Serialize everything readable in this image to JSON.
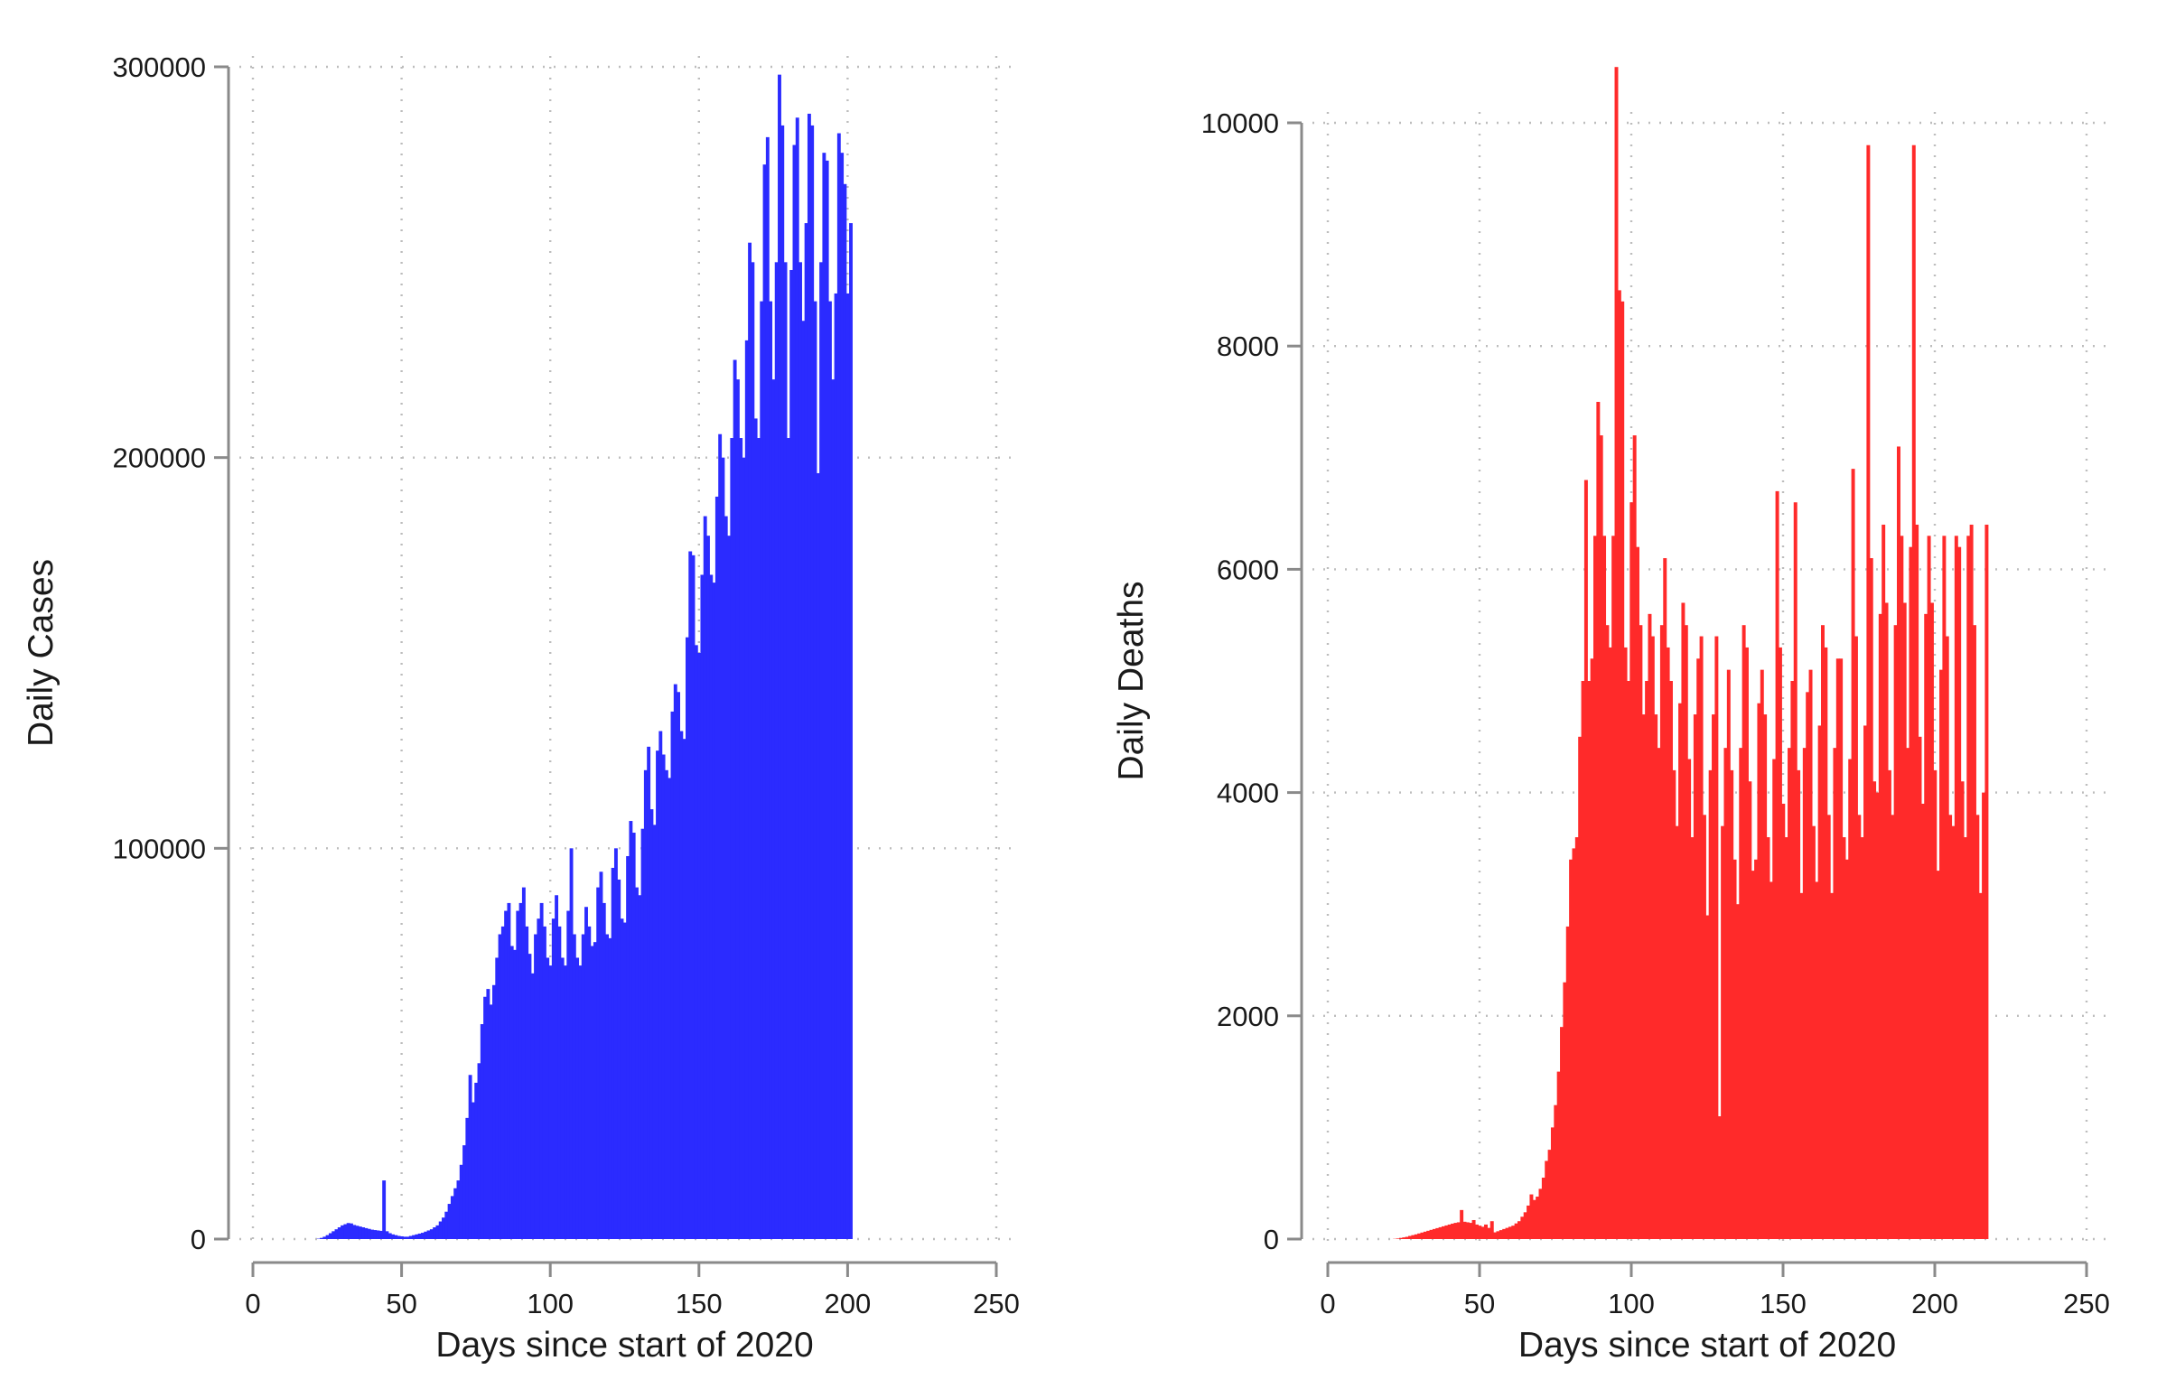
{
  "chart_data": [
    {
      "type": "bar",
      "panel": "left",
      "title": "",
      "xlabel": "Days since start of 2020",
      "ylabel": "Daily Cases",
      "xlim": [
        0,
        250
      ],
      "ylim": [
        0,
        300000
      ],
      "xticks": [
        "0",
        "50",
        "100",
        "150",
        "200",
        "250"
      ],
      "yticks": [
        "0",
        "100000",
        "200000",
        "300000"
      ],
      "grid": true,
      "color": "#2b2bff",
      "series": [
        {
          "name": "Daily Cases",
          "x_start": 22,
          "values": [
            100,
            300,
            600,
            1000,
            1500,
            2000,
            2500,
            3000,
            3500,
            3800,
            4100,
            4000,
            3600,
            3400,
            3200,
            3000,
            2800,
            2600,
            2400,
            2300,
            2200,
            2100,
            15000,
            2000,
            1500,
            1200,
            1000,
            800,
            700,
            600,
            600,
            800,
            1000,
            1200,
            1400,
            1600,
            1900,
            2200,
            2500,
            3000,
            3500,
            4500,
            5500,
            7000,
            9000,
            11000,
            13000,
            15000,
            19000,
            24000,
            31000,
            42000,
            35000,
            40000,
            45000,
            55000,
            62000,
            64000,
            60000,
            65000,
            72000,
            78000,
            80000,
            84000,
            86000,
            75000,
            74000,
            84000,
            86000,
            90000,
            80000,
            73000,
            68000,
            78000,
            82000,
            86000,
            80000,
            72000,
            70000,
            82000,
            88000,
            80000,
            72000,
            70000,
            84000,
            100000,
            78000,
            72000,
            70000,
            78000,
            85000,
            80000,
            75000,
            76000,
            90000,
            94000,
            86000,
            78000,
            77000,
            95000,
            100000,
            92000,
            82000,
            81000,
            98000,
            107000,
            104000,
            90000,
            88000,
            105000,
            120000,
            126000,
            110000,
            106000,
            125000,
            130000,
            124000,
            120000,
            118000,
            135000,
            142000,
            140000,
            130000,
            128000,
            154000,
            176000,
            175000,
            152000,
            150000,
            170000,
            185000,
            180000,
            170000,
            168000,
            190000,
            206000,
            200000,
            185000,
            180000,
            205000,
            225000,
            220000,
            205000,
            200000,
            230000,
            255000,
            250000,
            210000,
            205000,
            240000,
            275000,
            282000,
            240000,
            220000,
            250000,
            298000,
            285000,
            250000,
            205000,
            248000,
            280000,
            287000,
            250000,
            235000,
            260000,
            288000,
            285000,
            240000,
            196000,
            250000,
            278000,
            276000,
            240000,
            220000,
            242000,
            283000,
            278000,
            270000,
            242000,
            260000
          ]
        }
      ]
    },
    {
      "type": "bar",
      "panel": "right",
      "title": "",
      "xlabel": "Days since start of 2020",
      "ylabel": "Daily Deaths",
      "xlim": [
        0,
        250
      ],
      "ylim": [
        0,
        10000
      ],
      "xticks": [
        "0",
        "50",
        "100",
        "150",
        "200",
        "250"
      ],
      "yticks": [
        "0",
        "2000",
        "4000",
        "6000",
        "8000",
        "10000"
      ],
      "grid": true,
      "color": "#ff2a2a",
      "series": [
        {
          "name": "Daily Deaths",
          "x_start": 22,
          "values": [
            2,
            5,
            10,
            15,
            20,
            28,
            35,
            42,
            50,
            58,
            66,
            74,
            82,
            90,
            98,
            106,
            114,
            122,
            130,
            138,
            145,
            150,
            260,
            155,
            150,
            145,
            170,
            130,
            120,
            110,
            130,
            100,
            160,
            60,
            70,
            80,
            90,
            100,
            110,
            120,
            140,
            160,
            200,
            240,
            300,
            400,
            350,
            380,
            450,
            550,
            700,
            800,
            1000,
            1200,
            1500,
            1900,
            2300,
            2800,
            3400,
            3500,
            3600,
            4500,
            5000,
            6800,
            5000,
            5200,
            6300,
            7500,
            7200,
            6300,
            5500,
            5300,
            6300,
            10500,
            8500,
            8400,
            5300,
            5000,
            6600,
            7200,
            6200,
            5500,
            4700,
            5000,
            5600,
            5400,
            4700,
            4400,
            5500,
            6100,
            5300,
            5000,
            4200,
            3700,
            4800,
            5700,
            5500,
            4300,
            3600,
            4700,
            5200,
            5400,
            3800,
            2900,
            4200,
            4700,
            5400,
            1100,
            3700,
            4400,
            5100,
            4200,
            3400,
            3000,
            4400,
            5500,
            5300,
            4100,
            3300,
            3400,
            4800,
            5100,
            4700,
            3600,
            3200,
            4300,
            6700,
            5300,
            3900,
            3600,
            4400,
            5000,
            6600,
            4200,
            3100,
            4400,
            4900,
            5100,
            3700,
            3200,
            4600,
            5500,
            5300,
            3800,
            3100,
            4400,
            5200,
            5200,
            3600,
            3400,
            4300,
            6900,
            5400,
            3800,
            3600,
            4600,
            9800,
            6100,
            4100,
            4000,
            5600,
            6400,
            5700,
            4200,
            3800,
            5500,
            7100,
            6300,
            5700,
            4400,
            6200,
            9800,
            6400,
            4500,
            3900,
            5600,
            6300,
            5700,
            4200,
            3300,
            5100,
            6300,
            5400,
            3800,
            3700,
            6300,
            6200,
            4100,
            3600,
            6300,
            6400,
            5500,
            3800,
            3100,
            4000,
            6400
          ]
        }
      ]
    }
  ]
}
